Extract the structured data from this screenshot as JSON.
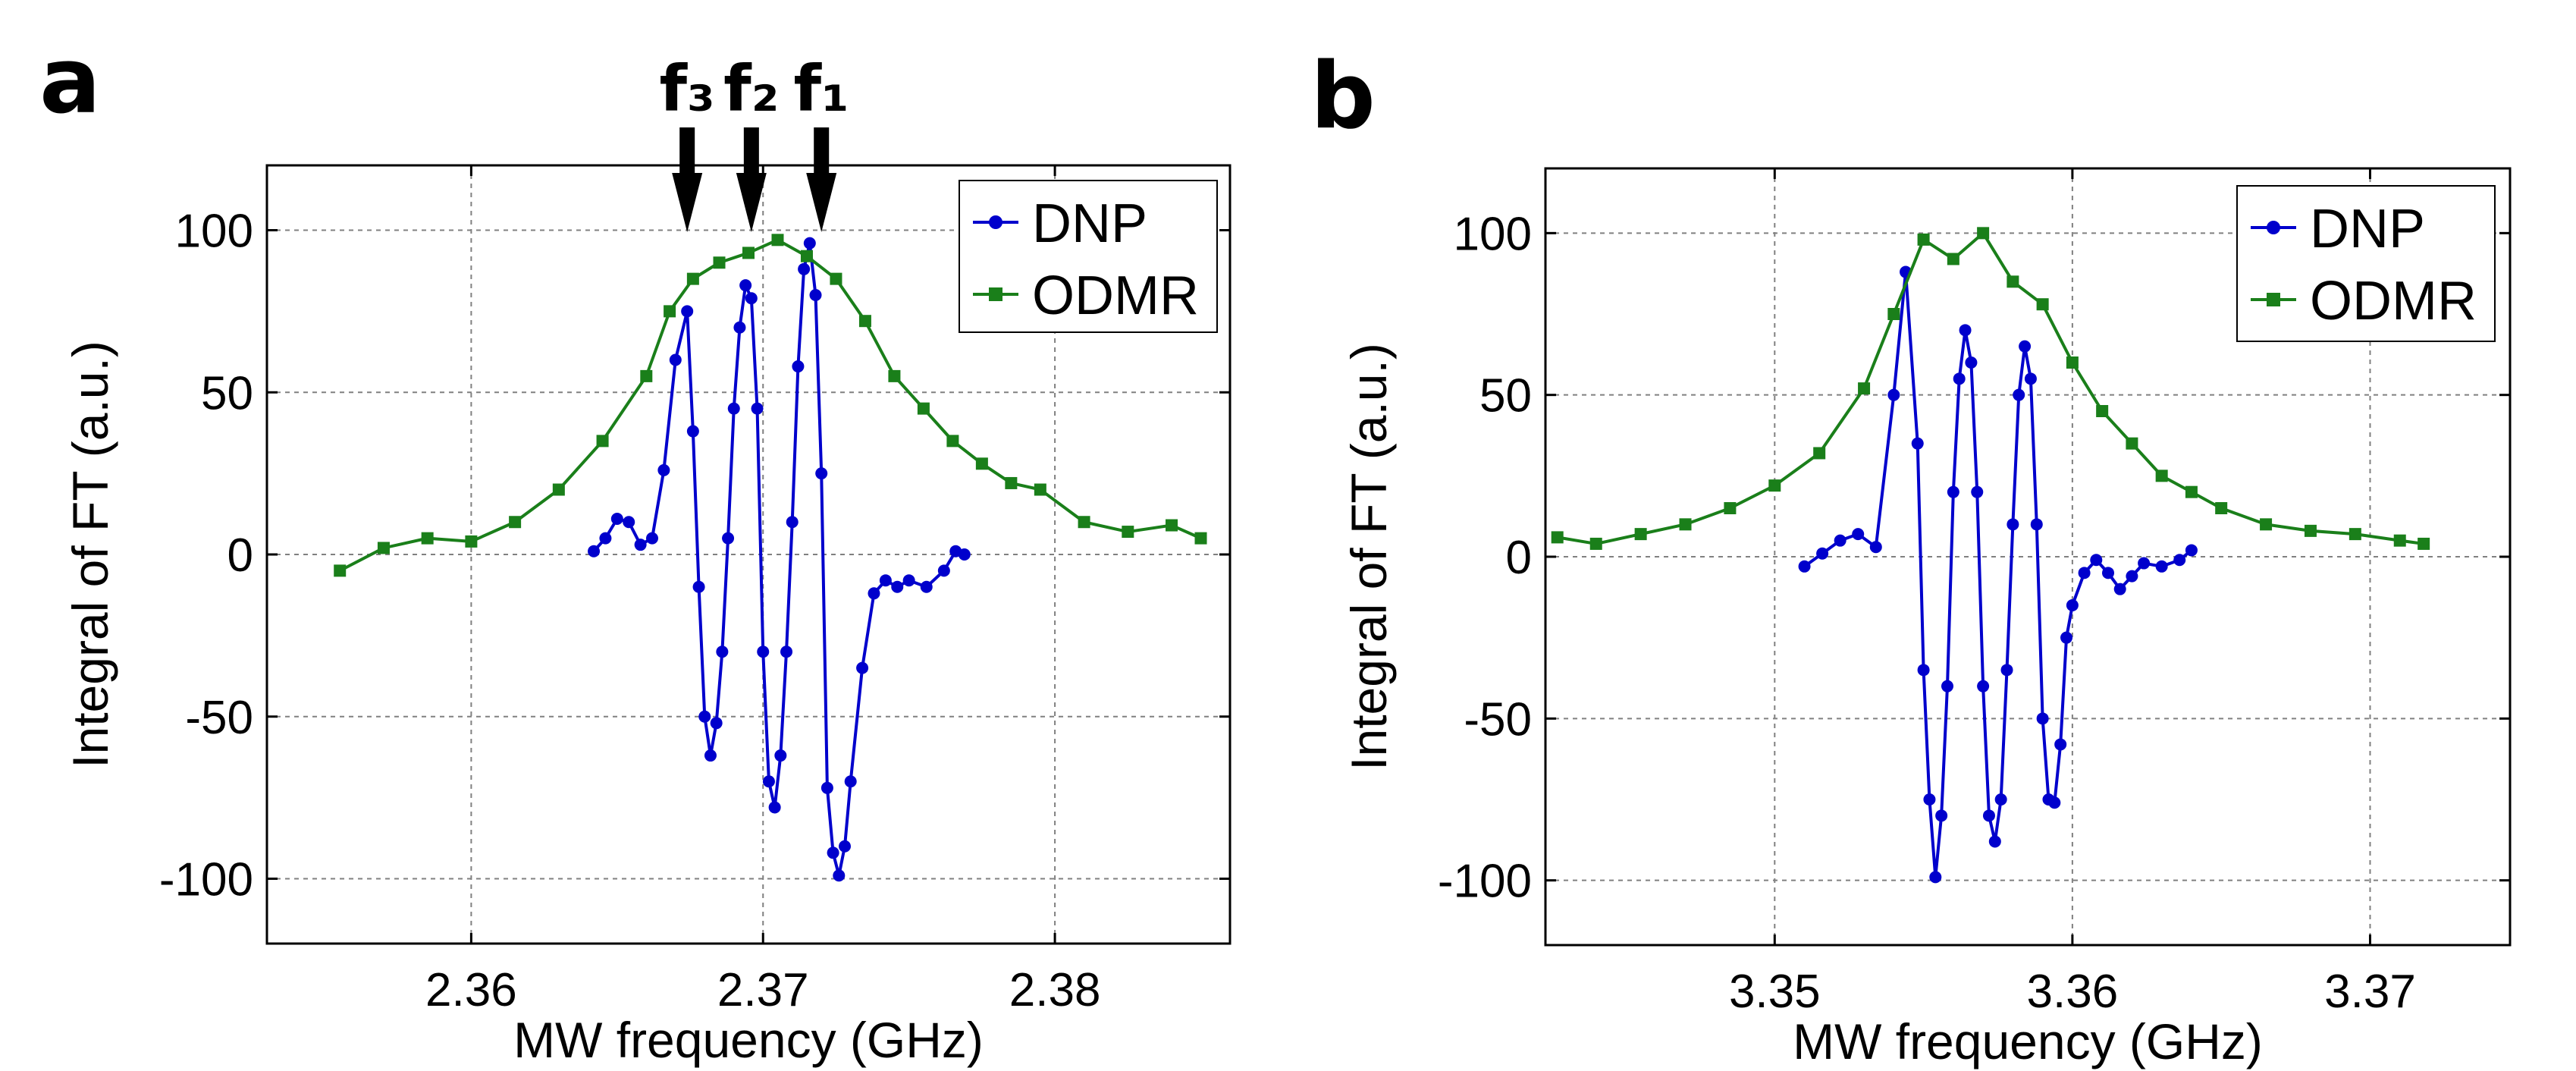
{
  "chart_data": [
    {
      "type": "line",
      "panel_label": "a",
      "xlabel": "MW frequency (GHz)",
      "ylabel": "Integral of FT (a.u.)",
      "xlim": [
        2.353,
        2.386
      ],
      "ylim": [
        -120,
        120
      ],
      "xticks": [
        2.36,
        2.37,
        2.38
      ],
      "xtick_labels": [
        "2.36",
        "2.37",
        "2.38"
      ],
      "yticks": [
        -100,
        -50,
        0,
        50,
        100
      ],
      "ytick_labels": [
        "-100",
        "-50",
        "0",
        "50",
        "100"
      ],
      "grid": true,
      "legend_position": "top-right",
      "annotations": [
        {
          "text": "f₃",
          "x": 2.3674
        },
        {
          "text": "f₂",
          "x": 2.3696
        },
        {
          "text": "f₁",
          "x": 2.372
        }
      ],
      "series": [
        {
          "name": "DNP",
          "color": "#0000cc",
          "marker": "circle",
          "x": [
            2.3642,
            2.3646,
            2.365,
            2.3654,
            2.3658,
            2.3662,
            2.3666,
            2.367,
            2.3674,
            2.3676,
            2.3678,
            2.368,
            2.3682,
            2.3684,
            2.3686,
            2.3688,
            2.369,
            2.3692,
            2.3694,
            2.3696,
            2.3698,
            2.37,
            2.3702,
            2.3704,
            2.3706,
            2.3708,
            2.371,
            2.3712,
            2.3714,
            2.3716,
            2.3718,
            2.372,
            2.3722,
            2.3724,
            2.3726,
            2.3728,
            2.373,
            2.3734,
            2.3738,
            2.3742,
            2.3746,
            2.375,
            2.3756,
            2.3762,
            2.3766,
            2.3769
          ],
          "y": [
            1,
            5,
            11,
            10,
            3,
            5,
            26,
            60,
            75,
            38,
            -10,
            -50,
            -62,
            -52,
            -30,
            5,
            45,
            70,
            83,
            79,
            45,
            -30,
            -70,
            -78,
            -62,
            -30,
            10,
            58,
            88,
            96,
            80,
            25,
            -72,
            -92,
            -99,
            -90,
            -70,
            -35,
            -12,
            -8,
            -10,
            -8,
            -10,
            -5,
            1,
            0
          ]
        },
        {
          "name": "ODMR",
          "color": "#1a7f1a",
          "marker": "square",
          "x": [
            2.3555,
            2.357,
            2.3585,
            2.36,
            2.3615,
            2.363,
            2.3645,
            2.366,
            2.3668,
            2.3676,
            2.3685,
            2.3695,
            2.3705,
            2.3715,
            2.3725,
            2.3735,
            2.3745,
            2.3755,
            2.3765,
            2.3775,
            2.3785,
            2.3795,
            2.381,
            2.3825,
            2.384,
            2.385
          ],
          "y": [
            -5,
            2,
            5,
            4,
            10,
            20,
            35,
            55,
            75,
            85,
            90,
            93,
            97,
            92,
            85,
            72,
            55,
            45,
            35,
            28,
            22,
            20,
            10,
            7,
            9,
            5
          ]
        }
      ]
    },
    {
      "type": "line",
      "panel_label": "b",
      "xlabel": "MW frequency (GHz)",
      "ylabel": "Integral of FT (a.u.)",
      "xlim": [
        3.3423,
        3.3747
      ],
      "ylim": [
        -120,
        120
      ],
      "xticks": [
        3.35,
        3.36,
        3.37
      ],
      "xtick_labels": [
        "3.35",
        "3.36",
        "3.37"
      ],
      "yticks": [
        -100,
        -50,
        0,
        50,
        100
      ],
      "ytick_labels": [
        "-100",
        "-50",
        "0",
        "50",
        "100"
      ],
      "grid": true,
      "legend_position": "top-right",
      "series": [
        {
          "name": "DNP",
          "color": "#0000cc",
          "marker": "circle",
          "x": [
            3.351,
            3.3516,
            3.3522,
            3.3528,
            3.3534,
            3.354,
            3.3544,
            3.3548,
            3.355,
            3.3552,
            3.3554,
            3.3556,
            3.3558,
            3.356,
            3.3562,
            3.3564,
            3.3566,
            3.3568,
            3.357,
            3.3572,
            3.3574,
            3.3576,
            3.3578,
            3.358,
            3.3582,
            3.3584,
            3.3586,
            3.3588,
            3.359,
            3.3592,
            3.3594,
            3.3596,
            3.3598,
            3.36,
            3.3604,
            3.3608,
            3.3612,
            3.3616,
            3.362,
            3.3624,
            3.363,
            3.3636,
            3.364
          ],
          "y": [
            -3,
            1,
            5,
            7,
            3,
            50,
            88,
            35,
            -35,
            -75,
            -99,
            -80,
            -40,
            20,
            55,
            70,
            60,
            20,
            -40,
            -80,
            -88,
            -75,
            -35,
            10,
            50,
            65,
            55,
            10,
            -50,
            -75,
            -76,
            -58,
            -25,
            -15,
            -5,
            -1,
            -5,
            -10,
            -6,
            -2,
            -3,
            -1,
            2
          ]
        },
        {
          "name": "ODMR",
          "color": "#1a7f1a",
          "marker": "square",
          "x": [
            3.3427,
            3.344,
            3.3455,
            3.347,
            3.3485,
            3.35,
            3.3515,
            3.353,
            3.354,
            3.355,
            3.356,
            3.357,
            3.358,
            3.359,
            3.36,
            3.361,
            3.362,
            3.363,
            3.364,
            3.365,
            3.3665,
            3.368,
            3.3695,
            3.371,
            3.3718
          ],
          "y": [
            6,
            4,
            7,
            10,
            15,
            22,
            32,
            52,
            75,
            98,
            92,
            100,
            85,
            78,
            60,
            45,
            35,
            25,
            20,
            15,
            10,
            8,
            7,
            5,
            4
          ]
        }
      ]
    }
  ]
}
